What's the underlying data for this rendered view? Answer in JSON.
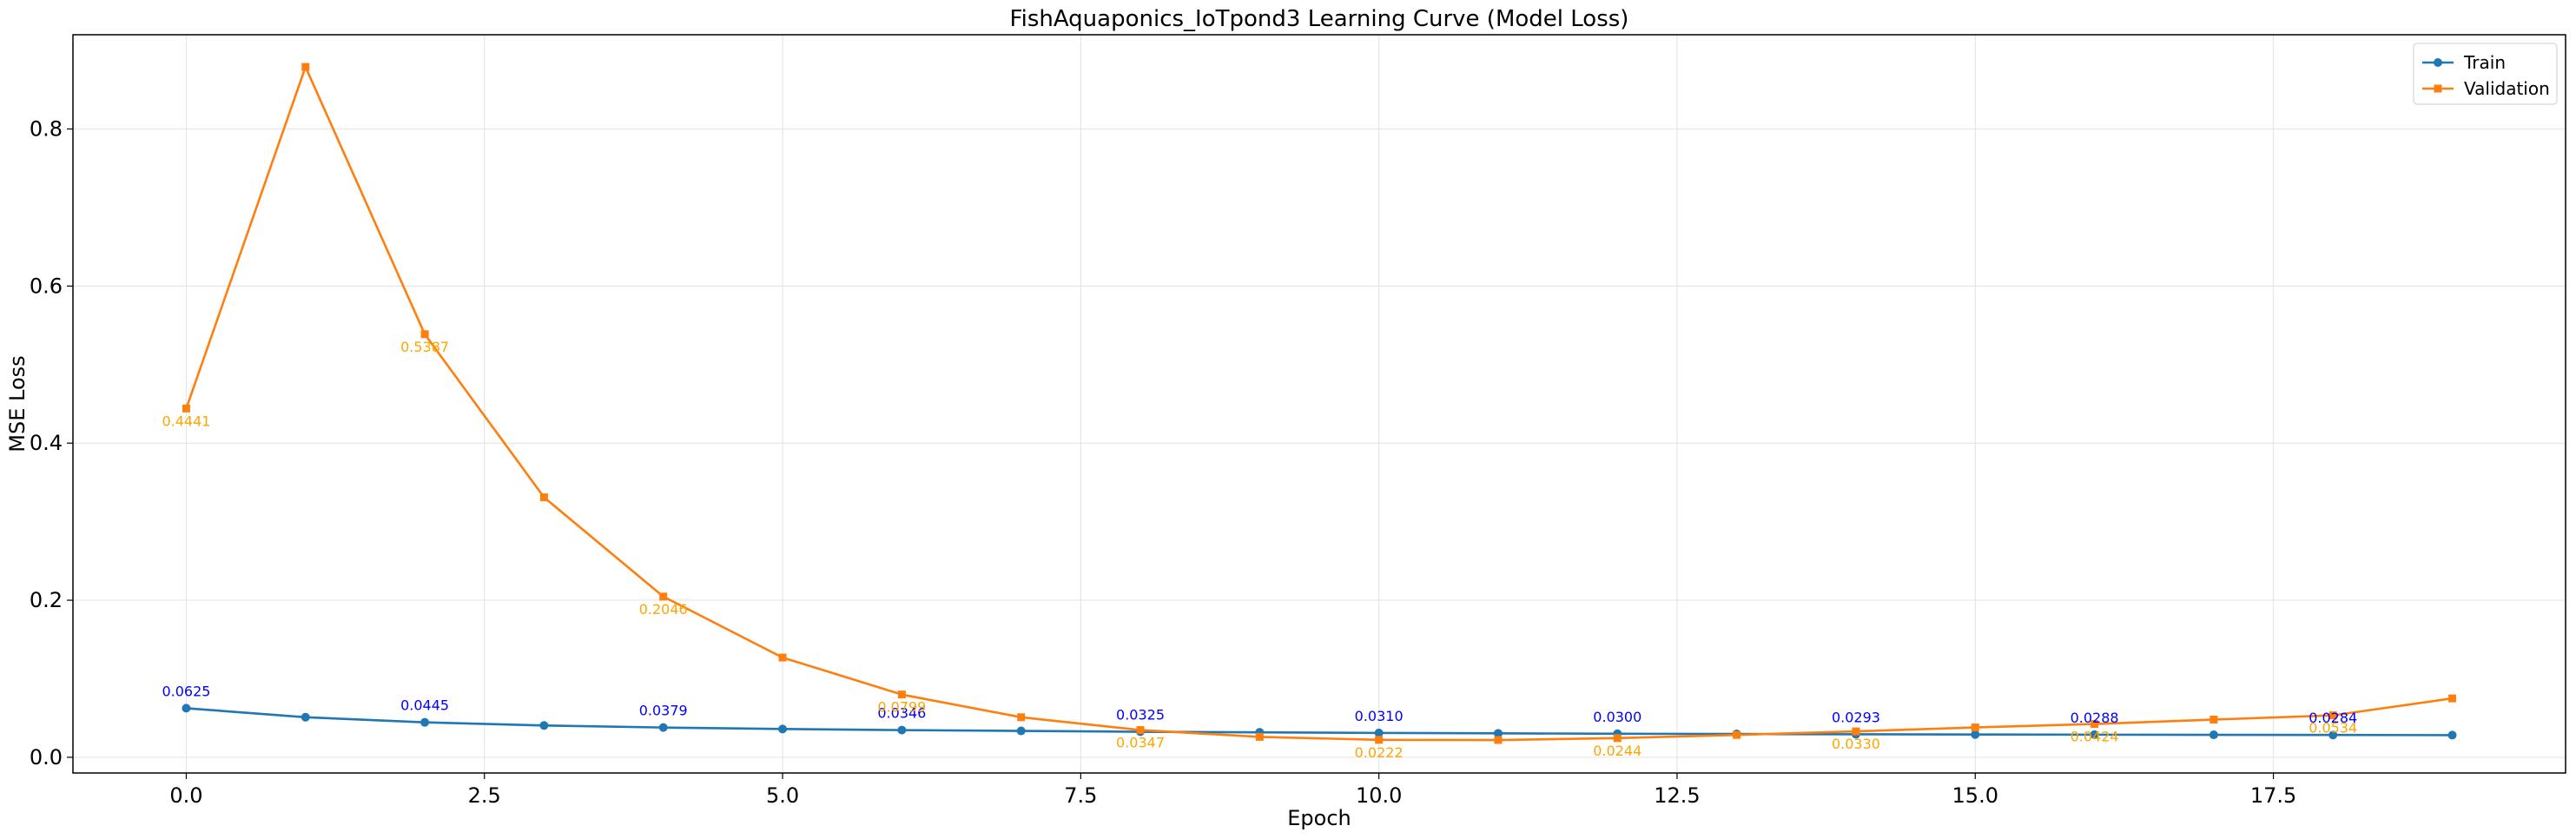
{
  "chart_data": {
    "type": "line",
    "title": "FishAquaponics_IoTpond3 Learning Curve (Model Loss)",
    "xlabel": "Epoch",
    "ylabel": "MSE Loss",
    "xlim": [
      -0.95,
      19.95
    ],
    "ylim": [
      -0.02,
      0.92
    ],
    "x_ticks": [
      0.0,
      2.5,
      5.0,
      7.5,
      10.0,
      12.5,
      15.0,
      17.5
    ],
    "x_tick_labels": [
      "0.0",
      "2.5",
      "5.0",
      "7.5",
      "10.0",
      "12.5",
      "15.0",
      "17.5"
    ],
    "y_ticks": [
      0.0,
      0.2,
      0.4,
      0.6,
      0.8
    ],
    "y_tick_labels": [
      "0.0",
      "0.2",
      "0.4",
      "0.6",
      "0.8"
    ],
    "grid": true,
    "legend_position": "top-right",
    "x": [
      0,
      1,
      2,
      3,
      4,
      5,
      6,
      7,
      8,
      9,
      10,
      11,
      12,
      13,
      14,
      15,
      16,
      17,
      18,
      19
    ],
    "series": [
      {
        "name": "Train",
        "color": "#1f77b4",
        "marker": "circle",
        "label_color": "#0000ff",
        "values": [
          0.0625,
          0.051,
          0.0445,
          0.0405,
          0.0379,
          0.036,
          0.0346,
          0.0336,
          0.0325,
          0.0318,
          0.031,
          0.0305,
          0.03,
          0.0297,
          0.0293,
          0.029,
          0.0288,
          0.0286,
          0.0284,
          0.0282
        ],
        "labeled_points": [
          {
            "x": 0,
            "text": "0.0625"
          },
          {
            "x": 2,
            "text": "0.0445"
          },
          {
            "x": 4,
            "text": "0.0379"
          },
          {
            "x": 6,
            "text": "0.0346"
          },
          {
            "x": 8,
            "text": "0.0325"
          },
          {
            "x": 10,
            "text": "0.0310"
          },
          {
            "x": 12,
            "text": "0.0300"
          },
          {
            "x": 14,
            "text": "0.0293"
          },
          {
            "x": 16,
            "text": "0.0288"
          },
          {
            "x": 18,
            "text": "0.0284"
          }
        ]
      },
      {
        "name": "Validation",
        "color": "#ff7f0e",
        "marker": "square",
        "label_color": "#ffa500",
        "values": [
          0.4441,
          0.879,
          0.5387,
          0.331,
          0.2046,
          0.127,
          0.0799,
          0.051,
          0.0347,
          0.026,
          0.0222,
          0.022,
          0.0244,
          0.0285,
          0.033,
          0.038,
          0.0424,
          0.048,
          0.0534,
          0.075
        ],
        "labeled_points": [
          {
            "x": 0,
            "text": "0.4441"
          },
          {
            "x": 2,
            "text": "0.5387"
          },
          {
            "x": 4,
            "text": "0.2046"
          },
          {
            "x": 6,
            "text": "0.0799"
          },
          {
            "x": 8,
            "text": "0.0347"
          },
          {
            "x": 10,
            "text": "0.0222"
          },
          {
            "x": 12,
            "text": "0.0244"
          },
          {
            "x": 14,
            "text": "0.0330"
          },
          {
            "x": 16,
            "text": "0.0424"
          },
          {
            "x": 18,
            "text": "0.0534"
          }
        ]
      }
    ]
  }
}
